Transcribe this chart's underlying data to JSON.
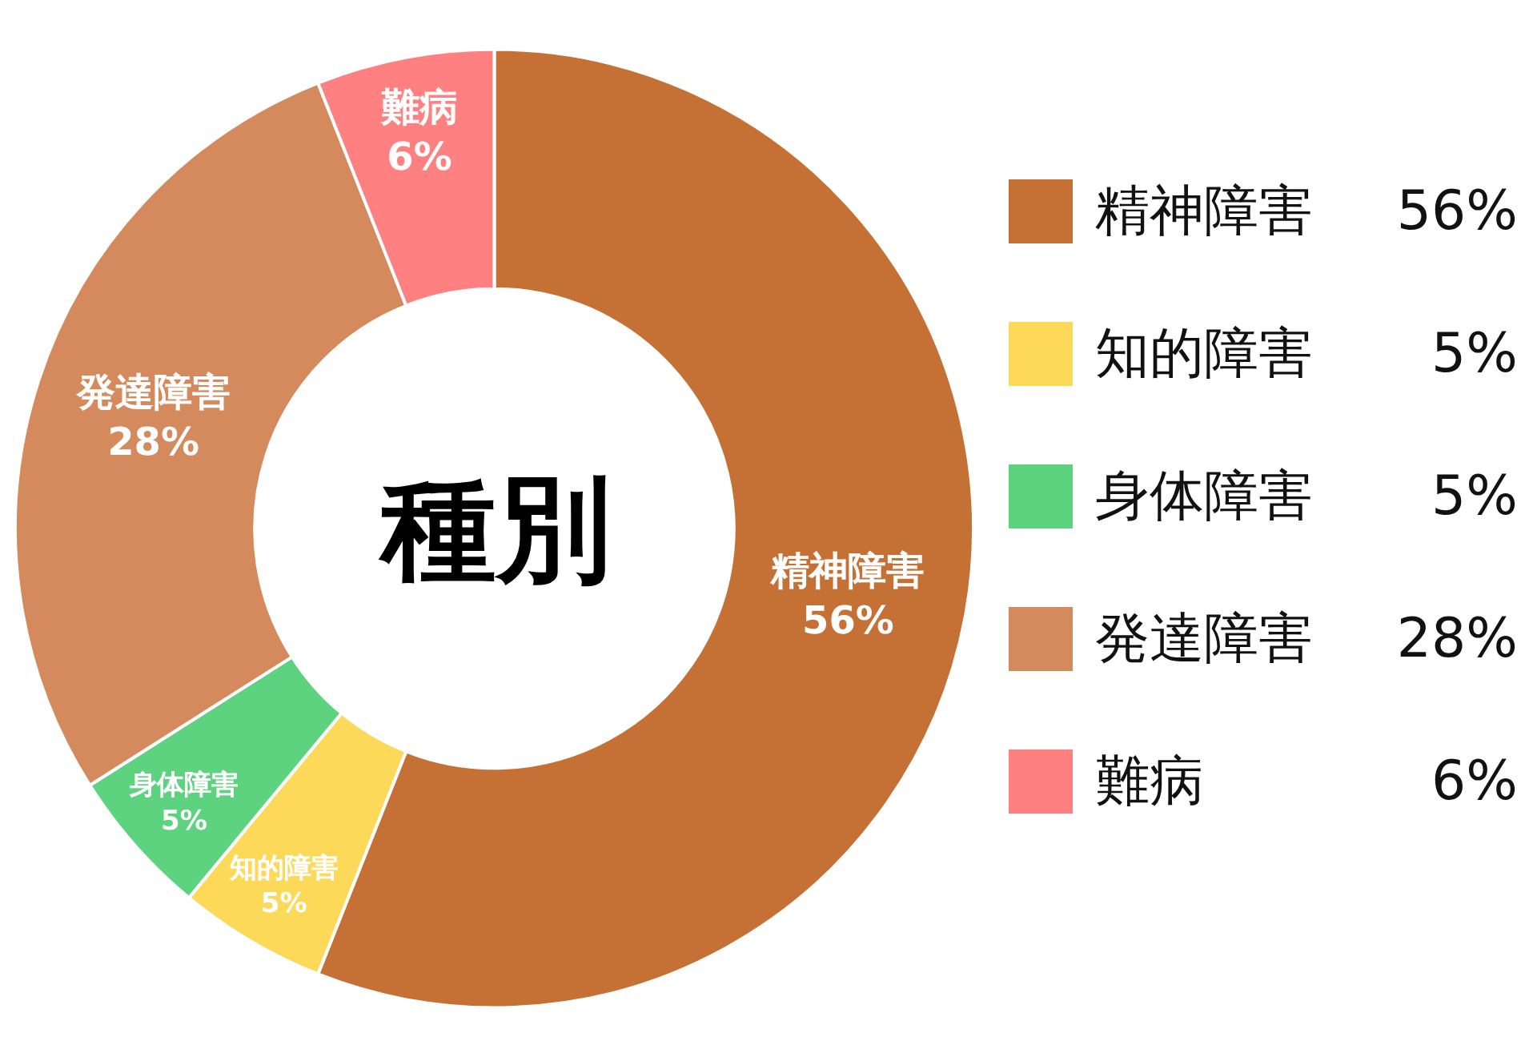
{
  "chart_data": {
    "type": "donut",
    "annotations": [
      "種別"
    ],
    "categories": [
      "精神障害",
      "知的障害",
      "身体障害",
      "発達障害",
      "難病"
    ],
    "values": [
      56,
      5,
      5,
      28,
      6
    ],
    "value_labels": [
      "56%",
      "5%",
      "5%",
      "28%",
      "6%"
    ],
    "colors": [
      "#c57035",
      "#fdd95a",
      "#5dd27f",
      "#d48a5c",
      "#ff8080"
    ],
    "legend": "right"
  }
}
